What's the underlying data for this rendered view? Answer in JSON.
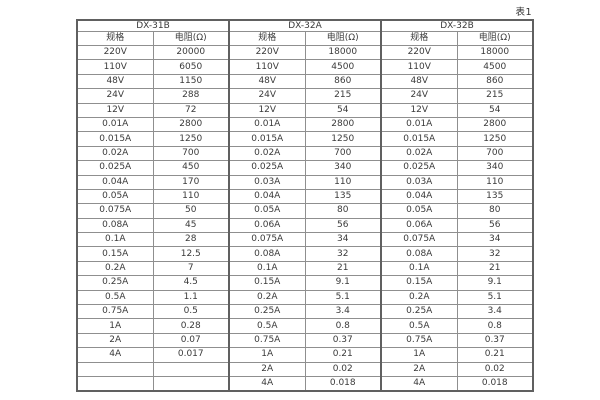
{
  "caption": "表1",
  "table": {
    "groups": [
      {
        "title": "DX-31B",
        "col_headers": [
          "规格",
          "电阻(Ω)"
        ],
        "rows": [
          [
            "220V",
            "20000"
          ],
          [
            "110V",
            "6050"
          ],
          [
            "48V",
            "1150"
          ],
          [
            "24V",
            "288"
          ],
          [
            "12V",
            "72"
          ],
          [
            "0.01A",
            "2800"
          ],
          [
            "0.015A",
            "1250"
          ],
          [
            "0.02A",
            "700"
          ],
          [
            "0.025A",
            "450"
          ],
          [
            "0.04A",
            "170"
          ],
          [
            "0.05A",
            "110"
          ],
          [
            "0.075A",
            "50"
          ],
          [
            "0.08A",
            "45"
          ],
          [
            "0.1A",
            "28"
          ],
          [
            "0.15A",
            "12.5"
          ],
          [
            "0.2A",
            "7"
          ],
          [
            "0.25A",
            "4.5"
          ],
          [
            "0.5A",
            "1.1"
          ],
          [
            "0.75A",
            "0.5"
          ],
          [
            "1A",
            "0.28"
          ],
          [
            "2A",
            "0.07"
          ],
          [
            "4A",
            "0.017"
          ],
          [
            "",
            ""
          ],
          [
            "",
            ""
          ]
        ]
      },
      {
        "title": "DX-32A",
        "col_headers": [
          "规格",
          "电阻(Ω)"
        ],
        "rows": [
          [
            "220V",
            "18000"
          ],
          [
            "110V",
            "4500"
          ],
          [
            "48V",
            "860"
          ],
          [
            "24V",
            "215"
          ],
          [
            "12V",
            "54"
          ],
          [
            "0.01A",
            "2800"
          ],
          [
            "0.015A",
            "1250"
          ],
          [
            "0.02A",
            "700"
          ],
          [
            "0.025A",
            "340"
          ],
          [
            "0.03A",
            "110"
          ],
          [
            "0.04A",
            "135"
          ],
          [
            "0.05A",
            "80"
          ],
          [
            "0.06A",
            "56"
          ],
          [
            "0.075A",
            "34"
          ],
          [
            "0.08A",
            "32"
          ],
          [
            "0.1A",
            "21"
          ],
          [
            "0.15A",
            "9.1"
          ],
          [
            "0.2A",
            "5.1"
          ],
          [
            "0.25A",
            "3.4"
          ],
          [
            "0.5A",
            "0.8"
          ],
          [
            "0.75A",
            "0.37"
          ],
          [
            "1A",
            "0.21"
          ],
          [
            "2A",
            "0.02"
          ],
          [
            "4A",
            "0.018"
          ]
        ]
      },
      {
        "title": "DX-32B",
        "col_headers": [
          "规格",
          "电阻(Ω)"
        ],
        "rows": [
          [
            "220V",
            "18000"
          ],
          [
            "110V",
            "4500"
          ],
          [
            "48V",
            "860"
          ],
          [
            "24V",
            "215"
          ],
          [
            "12V",
            "54"
          ],
          [
            "0.01A",
            "2800"
          ],
          [
            "0.015A",
            "1250"
          ],
          [
            "0.02A",
            "700"
          ],
          [
            "0.025A",
            "340"
          ],
          [
            "0.03A",
            "110"
          ],
          [
            "0.04A",
            "135"
          ],
          [
            "0.05A",
            "80"
          ],
          [
            "0.06A",
            "56"
          ],
          [
            "0.075A",
            "34"
          ],
          [
            "0.08A",
            "32"
          ],
          [
            "0.1A",
            "21"
          ],
          [
            "0.15A",
            "9.1"
          ],
          [
            "0.2A",
            "5.1"
          ],
          [
            "0.25A",
            "3.4"
          ],
          [
            "0.5A",
            "0.8"
          ],
          [
            "0.75A",
            "0.37"
          ],
          [
            "1A",
            "0.21"
          ],
          [
            "2A",
            "0.02"
          ],
          [
            "4A",
            "0.018"
          ]
        ]
      }
    ]
  }
}
